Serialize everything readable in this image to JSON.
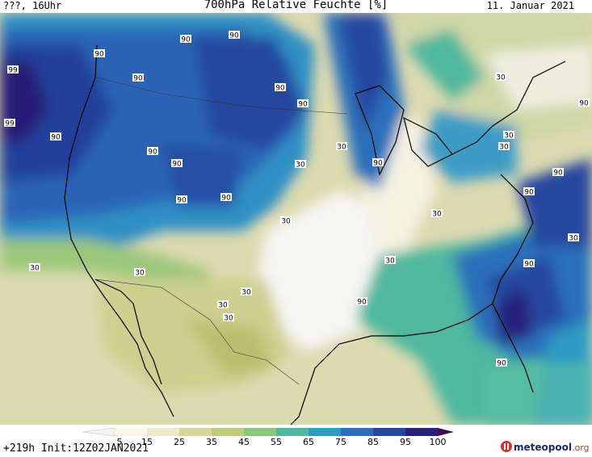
{
  "header": {
    "left": "???, 16Uhr",
    "title": "700hPa Relative Feuchte [%]",
    "date": "11. Januar 2021"
  },
  "footer": {
    "init": "+219h Init:12Z02JAN2021",
    "logo_main": "meteo",
    "logo_pool": "pool",
    "logo_org": ".org"
  },
  "colorbar": {
    "ticks": [
      "5",
      "15",
      "25",
      "35",
      "45",
      "55",
      "65",
      "75",
      "85",
      "95",
      "100"
    ],
    "colors": [
      "#f4f4f4",
      "#fbf6e6",
      "#ece9c6",
      "#d8d79a",
      "#bfcd79",
      "#8ac77a",
      "#4fb89e",
      "#2d9bc2",
      "#2c6fba",
      "#26479e",
      "#28237a",
      "#3a0f52"
    ]
  },
  "map": {
    "contour_labels": [
      "90",
      "90",
      "90",
      "90",
      "99",
      "99",
      "90",
      "90",
      "90",
      "90",
      "90",
      "90",
      "90",
      "90",
      "90",
      "90",
      "30",
      "30",
      "30",
      "30",
      "30",
      "30",
      "30",
      "30",
      "30",
      "30",
      "30",
      "30",
      "30",
      "30",
      "90",
      "90",
      "90",
      "90"
    ]
  }
}
